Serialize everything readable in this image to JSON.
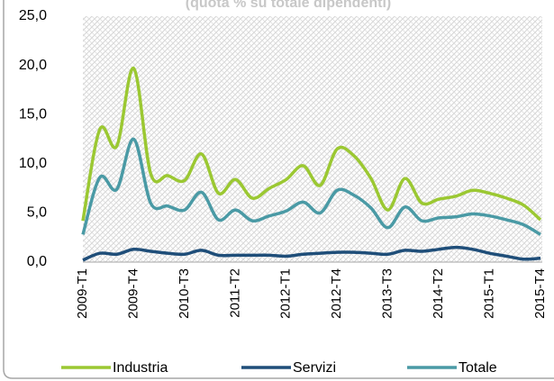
{
  "chart_data": {
    "type": "line",
    "subtitle": "(quota % su totale dipendenti)",
    "categories": [
      "2009-T1",
      null,
      null,
      "2009-T4",
      null,
      null,
      "2010-T3",
      null,
      null,
      "2011-T2",
      null,
      null,
      "2012-T1",
      null,
      null,
      "2012-T4",
      null,
      null,
      "2013-T3",
      null,
      null,
      "2014-T2",
      null,
      null,
      "2015-T1",
      null,
      null,
      "2015-T4"
    ],
    "series": [
      {
        "name": "Industria",
        "color": "#9bc832",
        "values": [
          4.2,
          13.5,
          11.8,
          19.7,
          9.0,
          8.8,
          8.3,
          11.0,
          7.0,
          8.4,
          6.5,
          7.5,
          8.4,
          9.8,
          7.8,
          11.5,
          10.8,
          8.5,
          5.3,
          8.5,
          6.0,
          6.4,
          6.7,
          7.3,
          7.0,
          6.5,
          5.8,
          4.3
        ]
      },
      {
        "name": "Servizi",
        "color": "#1f4e79",
        "values": [
          0.2,
          0.9,
          0.8,
          1.3,
          1.1,
          0.9,
          0.8,
          1.2,
          0.7,
          0.7,
          0.7,
          0.7,
          0.6,
          0.8,
          0.9,
          1.0,
          1.0,
          0.9,
          0.8,
          1.2,
          1.1,
          1.3,
          1.5,
          1.3,
          0.9,
          0.6,
          0.3,
          0.4
        ]
      },
      {
        "name": "Totale",
        "color": "#4a9aa5",
        "values": [
          2.8,
          8.6,
          7.4,
          12.5,
          6.0,
          5.7,
          5.3,
          7.1,
          4.3,
          5.3,
          4.2,
          4.7,
          5.2,
          6.1,
          5.0,
          7.3,
          6.8,
          5.5,
          3.5,
          5.6,
          4.2,
          4.5,
          4.6,
          4.9,
          4.7,
          4.3,
          3.8,
          2.8
        ]
      }
    ],
    "ylim": [
      0,
      25
    ],
    "yticks": [
      {
        "value": 0,
        "label": "0,0"
      },
      {
        "value": 5,
        "label": "5,0"
      },
      {
        "value": 10,
        "label": "10,0"
      },
      {
        "value": 15,
        "label": "15,0"
      },
      {
        "value": 20,
        "label": "20,0"
      },
      {
        "value": 25,
        "label": "25,0"
      }
    ],
    "grid": false,
    "legend": "bottom"
  }
}
